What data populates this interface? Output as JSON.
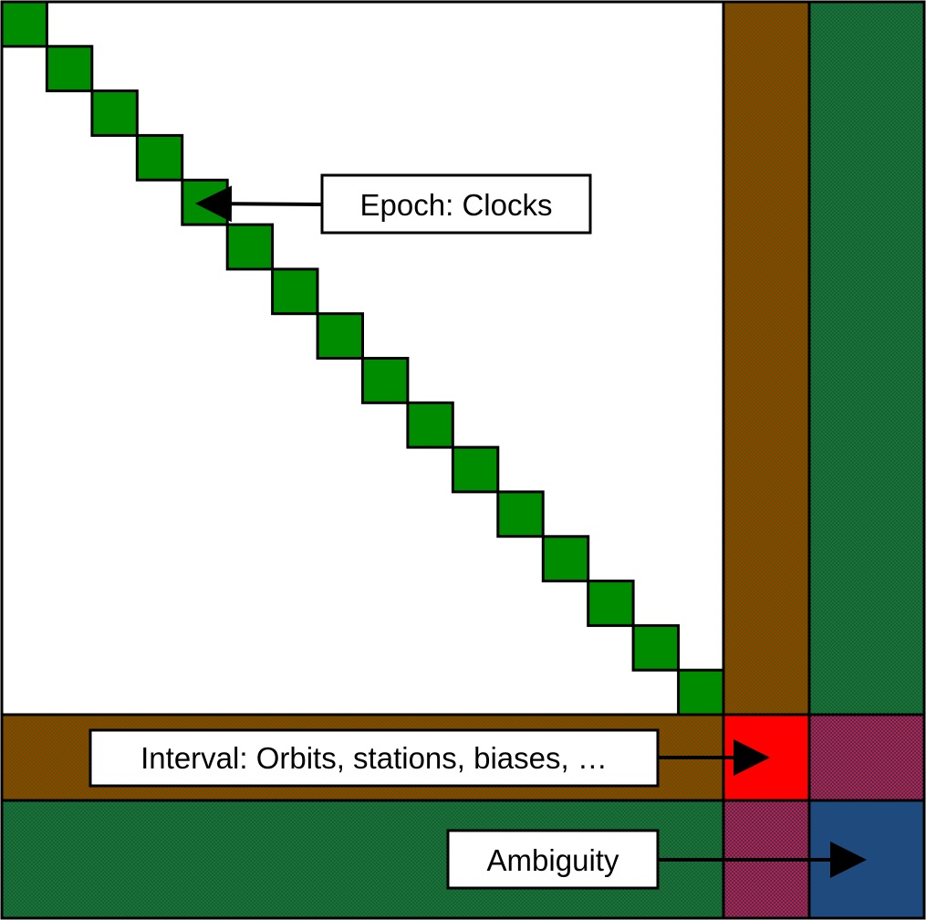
{
  "diagram": {
    "labels": {
      "epoch": "Epoch: Clocks",
      "interval": "Interval: Orbits, stations, biases, …",
      "ambiguity": "Ambiguity"
    },
    "colors": {
      "clock_block": "#008c00",
      "outline": "#000000",
      "background": "#ffffff",
      "interval_block": "#ff0000",
      "ambiguity_block": "#1f4a7d",
      "hatch_brown_red": "#c42a00",
      "hatch_brown_green": "#2f6b00",
      "hatch_green_a": "#127a24",
      "hatch_green_b": "#1c5a45",
      "hatch_red_blue_a": "#d01e28",
      "hatch_red_blue_b": "#3b2e72"
    },
    "clock_block_count": 16
  }
}
